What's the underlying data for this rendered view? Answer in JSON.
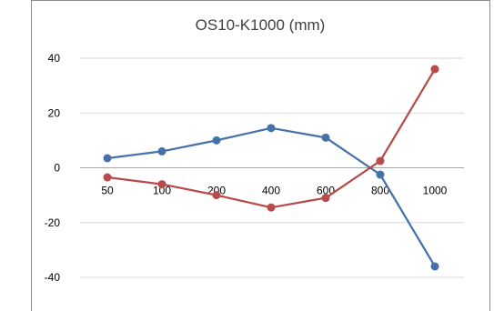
{
  "chart_data": {
    "type": "line",
    "title": "OS10-K1000 (mm)",
    "categories": [
      "50",
      "100",
      "200",
      "400",
      "600",
      "800",
      "1000"
    ],
    "ylim": [
      -40,
      40
    ],
    "yticks": [
      -40,
      -20,
      0,
      20,
      40
    ],
    "grid": true,
    "legend": "none",
    "series": [
      {
        "color": "#4472a8",
        "values": [
          3.5,
          6,
          10,
          14.5,
          11,
          -2.5,
          -36
        ]
      },
      {
        "color": "#b84a48",
        "values": [
          -3.5,
          -6,
          -10,
          -14.5,
          -11,
          2.5,
          36
        ]
      }
    ]
  }
}
